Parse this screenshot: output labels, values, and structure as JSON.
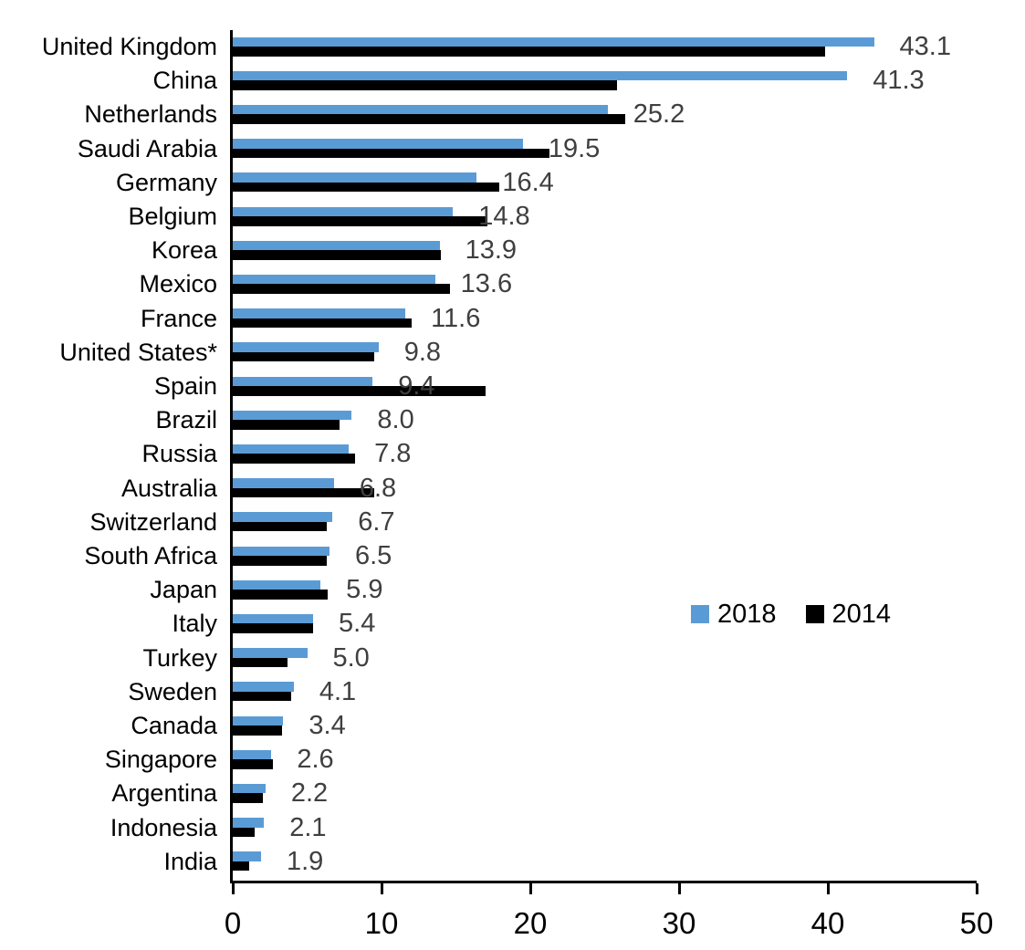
{
  "chart_data": {
    "type": "bar",
    "orientation": "horizontal",
    "title": "",
    "xlabel": "",
    "ylabel": "",
    "xlim": [
      0,
      50
    ],
    "x_ticks": [
      0,
      10,
      20,
      30,
      40,
      50
    ],
    "grid": false,
    "legend_position": "middle-right",
    "categories": [
      "United Kingdom",
      "China",
      "Netherlands",
      "Saudi Arabia",
      "Germany",
      "Belgium",
      "Korea",
      "Mexico",
      "France",
      "United States*",
      "Spain",
      "Brazil",
      "Russia",
      "Australia",
      "Switzerland",
      "South Africa",
      "Japan",
      "Italy",
      "Turkey",
      "Sweden",
      "Canada",
      "Singapore",
      "Argentina",
      "Indonesia",
      "India"
    ],
    "series": [
      {
        "name": "2018",
        "color": "#5b9bd5",
        "values": [
          43.1,
          41.3,
          25.2,
          19.5,
          16.4,
          14.8,
          13.9,
          13.6,
          11.6,
          9.8,
          9.4,
          8.0,
          7.8,
          6.8,
          6.7,
          6.5,
          5.9,
          5.4,
          5.0,
          4.1,
          3.4,
          2.6,
          2.2,
          2.1,
          1.9
        ]
      },
      {
        "name": "2014",
        "color": "#000000",
        "values": [
          39.8,
          25.8,
          26.4,
          21.3,
          17.9,
          17.1,
          14.0,
          14.6,
          12.0,
          9.5,
          17.0,
          7.2,
          8.2,
          9.5,
          6.3,
          6.3,
          6.4,
          5.4,
          3.7,
          3.9,
          3.3,
          2.7,
          2.0,
          1.5,
          1.1
        ]
      }
    ],
    "value_labels": [
      "43.1",
      "41.3",
      "25.2",
      "19.5",
      "16.4",
      "14.8",
      "13.9",
      "13.6",
      "11.6",
      "9.8",
      "9.4",
      "8.0",
      "7.8",
      "6.8",
      "6.7",
      "6.5",
      "5.9",
      "5.4",
      "5.0",
      "4.1",
      "3.4",
      "2.6",
      "2.2",
      "2.1",
      "1.9"
    ],
    "value_label_color": "#3f3f3f",
    "axis_color": "#000000",
    "x_tick_labels": [
      "0",
      "10",
      "20",
      "30",
      "40",
      "50"
    ]
  },
  "legend": {
    "items": [
      {
        "label": "2018",
        "color": "#5b9bd5"
      },
      {
        "label": "2014",
        "color": "#000000"
      }
    ]
  }
}
